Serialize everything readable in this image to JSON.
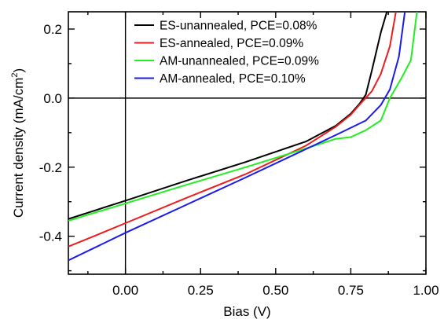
{
  "chart_data": {
    "type": "line",
    "xlabel": "Bias (V)",
    "ylabel": "Current density (mA/cm²)",
    "ylabel_parts": {
      "main": "Current density (mA/cm",
      "sup": "2",
      "end": ")"
    },
    "xlim": [
      -0.19,
      1.0
    ],
    "ylim": [
      -0.51,
      0.25
    ],
    "x_ticks": [
      0.0,
      0.25,
      0.5,
      0.75,
      1.0
    ],
    "x_tick_labels": [
      "0.00",
      "0.25",
      "0.50",
      "0.75",
      "1.00"
    ],
    "y_ticks": [
      -0.4,
      -0.2,
      0.0,
      0.2
    ],
    "y_tick_labels": [
      "-0.4",
      "-0.2",
      "0.0",
      "0.2"
    ],
    "reference_lines": {
      "x": 0,
      "y": 0
    },
    "grid": false,
    "legend_position": "top-center",
    "series": [
      {
        "name": "ES-unannealed, PCE=0.08%",
        "color": "#000000",
        "x": [
          -0.19,
          0.0,
          0.2,
          0.4,
          0.6,
          0.7,
          0.75,
          0.78,
          0.8,
          0.82,
          0.85,
          0.87
        ],
        "y": [
          -0.35,
          -0.297,
          -0.24,
          -0.185,
          -0.126,
          -0.08,
          -0.045,
          -0.015,
          0.01,
          0.08,
          0.19,
          0.25
        ]
      },
      {
        "name": "ES-annealed, PCE=0.09%",
        "color": "#ee1c1c",
        "x": [
          -0.19,
          -0.1,
          0.0,
          0.2,
          0.4,
          0.6,
          0.7,
          0.75,
          0.78,
          0.82,
          0.85,
          0.88,
          0.9
        ],
        "y": [
          -0.43,
          -0.398,
          -0.362,
          -0.29,
          -0.22,
          -0.138,
          -0.083,
          -0.048,
          -0.018,
          0.02,
          0.07,
          0.15,
          0.25
        ]
      },
      {
        "name": "AM-unannealed, PCE=0.09%",
        "color": "#22ee22",
        "x": [
          -0.19,
          0.0,
          0.2,
          0.4,
          0.6,
          0.7,
          0.75,
          0.8,
          0.85,
          0.88,
          0.92,
          0.95,
          0.97
        ],
        "y": [
          -0.355,
          -0.305,
          -0.252,
          -0.2,
          -0.146,
          -0.118,
          -0.113,
          -0.093,
          -0.065,
          0.0,
          0.06,
          0.11,
          0.25
        ]
      },
      {
        "name": "AM-annealed, PCE=0.10%",
        "color": "#1a1aee",
        "x": [
          -0.19,
          0.0,
          0.2,
          0.4,
          0.6,
          0.7,
          0.8,
          0.85,
          0.88,
          0.91,
          0.93
        ],
        "y": [
          -0.47,
          -0.39,
          -0.31,
          -0.23,
          -0.148,
          -0.107,
          -0.065,
          -0.02,
          0.025,
          0.12,
          0.25
        ]
      }
    ]
  }
}
